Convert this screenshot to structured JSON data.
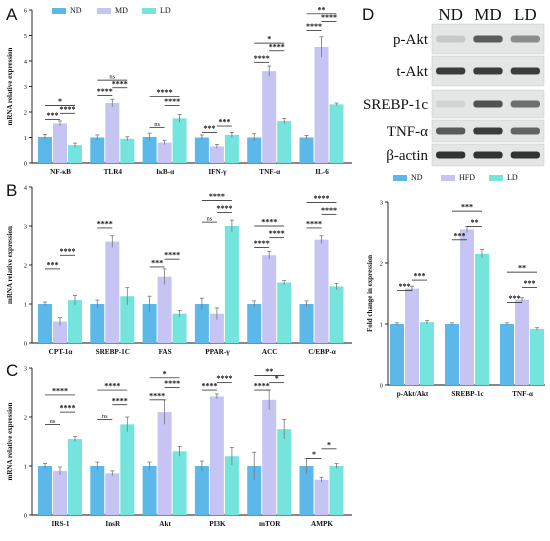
{
  "panel_labels": {
    "a": "A",
    "b": "B",
    "c": "C",
    "d": "D"
  },
  "colors": {
    "ND": "#5cb8e8",
    "MD": "#c6c4f2",
    "LD": "#74e4dc"
  },
  "chart_data": [
    {
      "id": "A",
      "type": "bar",
      "ylabel": "mRNA relative expression",
      "ylim": [
        0,
        6
      ],
      "yticks": [
        0,
        1,
        2,
        3,
        4,
        5,
        6
      ],
      "legend": [
        "ND",
        "MD",
        "LD"
      ],
      "categories": [
        "NF-κB",
        "TLR4",
        "IκB-α",
        "IFN-γ",
        "TNF-α",
        "IL-6"
      ],
      "series": [
        {
          "name": "ND",
          "values": [
            1.02,
            1.0,
            1.02,
            1.0,
            1.0,
            1.0
          ],
          "errors": [
            0.1,
            0.1,
            0.15,
            0.1,
            0.15,
            0.08
          ]
        },
        {
          "name": "MD",
          "values": [
            1.55,
            2.35,
            0.8,
            0.65,
            3.6,
            4.55
          ],
          "errors": [
            0.1,
            0.15,
            0.08,
            0.08,
            0.2,
            0.4
          ]
        },
        {
          "name": "LD",
          "values": [
            0.7,
            0.95,
            1.75,
            1.1,
            1.65,
            2.3
          ],
          "errors": [
            0.08,
            0.08,
            0.15,
            0.1,
            0.1,
            0.05
          ]
        }
      ],
      "sig": [
        {
          "cat": 0,
          "from": 0,
          "to": 2,
          "text": "*",
          "y": 2.25
        },
        {
          "cat": 0,
          "from": 1,
          "to": 2,
          "text": "****",
          "y": 1.95
        },
        {
          "cat": 0,
          "from": 0,
          "to": 1,
          "text": "***",
          "y": 1.7
        },
        {
          "cat": 1,
          "from": 0,
          "to": 2,
          "text": "ns",
          "y": 3.25
        },
        {
          "cat": 1,
          "from": 1,
          "to": 2,
          "text": "****",
          "y": 2.95
        },
        {
          "cat": 1,
          "from": 0,
          "to": 1,
          "text": "****",
          "y": 2.65
        },
        {
          "cat": 2,
          "from": 0,
          "to": 2,
          "text": "****",
          "y": 2.6
        },
        {
          "cat": 2,
          "from": 1,
          "to": 2,
          "text": "****",
          "y": 2.25
        },
        {
          "cat": 2,
          "from": 0,
          "to": 1,
          "text": "ns",
          "y": 1.4
        },
        {
          "cat": 3,
          "from": 1,
          "to": 2,
          "text": "***",
          "y": 1.45
        },
        {
          "cat": 3,
          "from": 0,
          "to": 1,
          "text": "***",
          "y": 1.2
        },
        {
          "cat": 4,
          "from": 0,
          "to": 2,
          "text": "*",
          "y": 4.7
        },
        {
          "cat": 4,
          "from": 1,
          "to": 2,
          "text": "****",
          "y": 4.4
        },
        {
          "cat": 4,
          "from": 0,
          "to": 1,
          "text": "****",
          "y": 3.95
        },
        {
          "cat": 5,
          "from": 0,
          "to": 2,
          "text": "**",
          "y": 5.85
        },
        {
          "cat": 5,
          "from": 1,
          "to": 2,
          "text": "****",
          "y": 5.55
        },
        {
          "cat": 5,
          "from": 0,
          "to": 1,
          "text": "****",
          "y": 5.2
        }
      ]
    },
    {
      "id": "B",
      "type": "bar",
      "ylabel": "mRNA relative expression",
      "ylim": [
        0,
        4
      ],
      "yticks": [
        0,
        1,
        2,
        3,
        4
      ],
      "legend": [],
      "categories": [
        "CPT-1α",
        "SREBP-1C",
        "FAS",
        "PPAR-γ",
        "ACC",
        "C/EBP-α"
      ],
      "series": [
        {
          "name": "ND",
          "values": [
            1.0,
            1.0,
            1.0,
            1.0,
            1.0,
            1.0
          ],
          "errors": [
            0.05,
            0.1,
            0.2,
            0.15,
            0.08,
            0.08
          ]
        },
        {
          "name": "MD",
          "values": [
            0.55,
            2.6,
            1.7,
            0.75,
            2.25,
            2.65
          ],
          "errors": [
            0.1,
            0.15,
            0.2,
            0.15,
            0.1,
            0.1
          ]
        },
        {
          "name": "LD",
          "values": [
            1.1,
            1.2,
            0.75,
            3.0,
            1.55,
            1.45
          ],
          "errors": [
            0.12,
            0.22,
            0.08,
            0.15,
            0.05,
            0.08
          ]
        }
      ],
      "sig": [
        {
          "cat": 0,
          "from": 1,
          "to": 2,
          "text": "****",
          "y": 2.25
        },
        {
          "cat": 0,
          "from": 0,
          "to": 1,
          "text": "***",
          "y": 1.9
        },
        {
          "cat": 1,
          "from": 0,
          "to": 1,
          "text": "****",
          "y": 2.95
        },
        {
          "cat": 2,
          "from": 1,
          "to": 2,
          "text": "****",
          "y": 2.15
        },
        {
          "cat": 2,
          "from": 0,
          "to": 1,
          "text": "***",
          "y": 1.95
        },
        {
          "cat": 3,
          "from": 0,
          "to": 2,
          "text": "****",
          "y": 3.65
        },
        {
          "cat": 3,
          "from": 1,
          "to": 2,
          "text": "****",
          "y": 3.35
        },
        {
          "cat": 3,
          "from": 0,
          "to": 1,
          "text": "ns",
          "y": 3.1
        },
        {
          "cat": 4,
          "from": 0,
          "to": 2,
          "text": "****",
          "y": 3.0
        },
        {
          "cat": 4,
          "from": 1,
          "to": 2,
          "text": "****",
          "y": 2.7
        },
        {
          "cat": 4,
          "from": 0,
          "to": 1,
          "text": "****",
          "y": 2.45
        },
        {
          "cat": 5,
          "from": 0,
          "to": 2,
          "text": "****",
          "y": 3.6
        },
        {
          "cat": 5,
          "from": 1,
          "to": 2,
          "text": "****",
          "y": 3.3
        },
        {
          "cat": 5,
          "from": 0,
          "to": 1,
          "text": "****",
          "y": 2.95
        }
      ]
    },
    {
      "id": "C",
      "type": "bar",
      "ylabel": "mRNA relative expression",
      "ylim": [
        0,
        3
      ],
      "yticks": [
        0,
        1,
        2,
        3
      ],
      "legend": [],
      "categories": [
        "IRS-1",
        "InsR",
        "Akt",
        "PI3K",
        "mTOR",
        "AMPK"
      ],
      "series": [
        {
          "name": "ND",
          "values": [
            1.0,
            1.0,
            1.0,
            1.0,
            1.0,
            1.0
          ],
          "errors": [
            0.05,
            0.08,
            0.08,
            0.1,
            0.28,
            0.15
          ]
        },
        {
          "name": "MD",
          "values": [
            0.9,
            0.85,
            2.1,
            2.42,
            2.35,
            0.72
          ],
          "errors": [
            0.08,
            0.05,
            0.25,
            0.05,
            0.2,
            0.05
          ]
        },
        {
          "name": "LD",
          "values": [
            1.55,
            1.85,
            1.3,
            1.2,
            1.75,
            1.0
          ],
          "errors": [
            0.05,
            0.15,
            0.1,
            0.18,
            0.2,
            0.05
          ]
        }
      ],
      "sig": [
        {
          "cat": 0,
          "from": 0,
          "to": 2,
          "text": "****",
          "y": 2.45
        },
        {
          "cat": 0,
          "from": 1,
          "to": 2,
          "text": "****",
          "y": 2.1
        },
        {
          "cat": 0,
          "from": 0,
          "to": 1,
          "text": "ns",
          "y": 1.85
        },
        {
          "cat": 1,
          "from": 0,
          "to": 2,
          "text": "****",
          "y": 2.55
        },
        {
          "cat": 1,
          "from": 1,
          "to": 2,
          "text": "****",
          "y": 2.25
        },
        {
          "cat": 1,
          "from": 0,
          "to": 1,
          "text": "ns",
          "y": 1.95
        },
        {
          "cat": 2,
          "from": 0,
          "to": 2,
          "text": "*",
          "y": 2.8
        },
        {
          "cat": 2,
          "from": 1,
          "to": 2,
          "text": "****",
          "y": 2.6
        },
        {
          "cat": 2,
          "from": 0,
          "to": 1,
          "text": "****",
          "y": 2.35
        },
        {
          "cat": 3,
          "from": 1,
          "to": 2,
          "text": "****",
          "y": 2.7
        },
        {
          "cat": 3,
          "from": 0,
          "to": 1,
          "text": "****",
          "y": 2.55
        },
        {
          "cat": 4,
          "from": 0,
          "to": 2,
          "text": "**",
          "y": 2.85
        },
        {
          "cat": 4,
          "from": 1,
          "to": 2,
          "text": "*",
          "y": 2.7
        },
        {
          "cat": 4,
          "from": 0,
          "to": 1,
          "text": "****",
          "y": 2.55
        },
        {
          "cat": 5,
          "from": 1,
          "to": 2,
          "text": "*",
          "y": 1.35
        },
        {
          "cat": 5,
          "from": 0,
          "to": 1,
          "text": "*",
          "y": 1.15
        }
      ]
    },
    {
      "id": "D",
      "type": "bar",
      "ylabel": "Fold change in expression",
      "ylim": [
        0,
        3
      ],
      "yticks": [
        0,
        1,
        2,
        3
      ],
      "legend": [
        "ND",
        "HFD",
        "LD"
      ],
      "categories": [
        "p-Akt/Akt",
        "SREBP-1c",
        "TNF-α"
      ],
      "series": [
        {
          "name": "ND",
          "values": [
            1.0,
            1.0,
            1.0
          ],
          "errors": [
            0.02,
            0.02,
            0.02
          ]
        },
        {
          "name": "HFD",
          "values": [
            1.58,
            2.55,
            1.4
          ],
          "errors": [
            0.04,
            0.05,
            0.03
          ]
        },
        {
          "name": "LD",
          "values": [
            1.03,
            2.15,
            0.92
          ],
          "errors": [
            0.03,
            0.07,
            0.02
          ]
        }
      ],
      "sig": [
        {
          "cat": 0,
          "from": 1,
          "to": 2,
          "text": "***",
          "y": 1.72
        },
        {
          "cat": 0,
          "from": 0,
          "to": 1,
          "text": "***",
          "y": 1.55
        },
        {
          "cat": 1,
          "from": 0,
          "to": 2,
          "text": "***",
          "y": 2.85
        },
        {
          "cat": 1,
          "from": 1,
          "to": 2,
          "text": "**",
          "y": 2.6
        },
        {
          "cat": 1,
          "from": 0,
          "to": 1,
          "text": "***",
          "y": 2.38
        },
        {
          "cat": 2,
          "from": 0,
          "to": 2,
          "text": "**",
          "y": 1.85
        },
        {
          "cat": 2,
          "from": 1,
          "to": 2,
          "text": "***",
          "y": 1.6
        },
        {
          "cat": 2,
          "from": 0,
          "to": 1,
          "text": "***",
          "y": 1.35
        }
      ]
    }
  ],
  "western_blot": {
    "groups": [
      "ND",
      "MD",
      "LD"
    ],
    "proteins": [
      "p-Akt",
      "t-Akt",
      "SREBP-1c",
      "TNF-α",
      "β-actin"
    ],
    "band_intensity": [
      [
        0.15,
        0.7,
        0.45
      ],
      [
        0.85,
        0.85,
        0.85
      ],
      [
        0.1,
        0.75,
        0.6
      ],
      [
        0.7,
        0.85,
        0.65
      ],
      [
        0.9,
        0.9,
        0.9
      ]
    ]
  }
}
